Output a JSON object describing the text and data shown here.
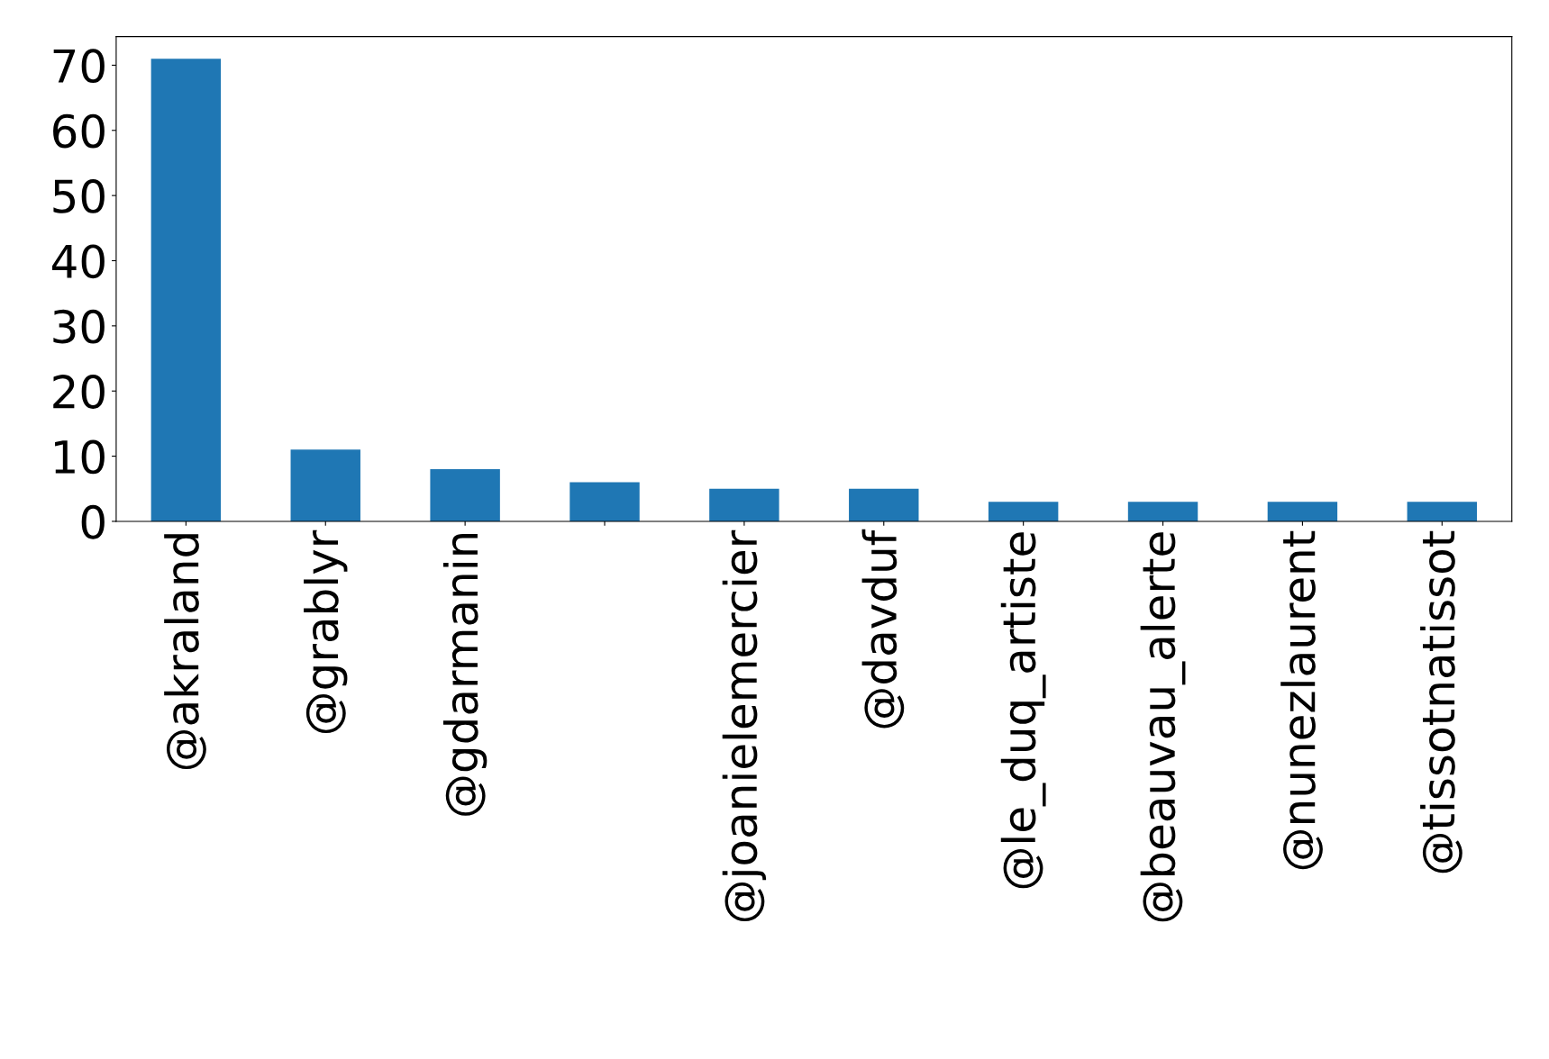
{
  "chart_data": {
    "type": "bar",
    "categories": [
      "@akraland",
      "@grablyr",
      "@gdarmanin",
      null,
      "@joanielemercier",
      "@davduf",
      "@le_duq_artiste",
      "@beauvau_alerte",
      "@nunezlaurent",
      "@tissotnatissot"
    ],
    "values": [
      71,
      11,
      8,
      6,
      5,
      5,
      3,
      3,
      3,
      3
    ],
    "color": "#1f77b4",
    "ylim": [
      0,
      74.4
    ],
    "yticks": [
      0,
      10,
      20,
      30,
      40,
      50,
      60,
      70
    ],
    "grid": false,
    "legend": false
  }
}
